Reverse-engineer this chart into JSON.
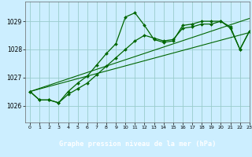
{
  "title": "Graphe pression niveau de la mer (hPa)",
  "bg_color": "#cceeff",
  "grid_color": "#99cccc",
  "line_color": "#006600",
  "xlim": [
    -0.5,
    23
  ],
  "ylim": [
    1025.4,
    1029.7
  ],
  "yticks": [
    1026,
    1027,
    1028,
    1029
  ],
  "xticks": [
    0,
    1,
    2,
    3,
    4,
    5,
    6,
    7,
    8,
    9,
    10,
    11,
    12,
    13,
    14,
    15,
    16,
    17,
    18,
    19,
    20,
    21,
    22,
    23
  ],
  "series_wavy": {
    "x": [
      0,
      1,
      2,
      3,
      4,
      5,
      6,
      7,
      8,
      9,
      10,
      11,
      12,
      13,
      14,
      15,
      16,
      17,
      18,
      19,
      20,
      21,
      22,
      23
    ],
    "y": [
      1026.5,
      1026.2,
      1026.2,
      1026.1,
      1026.5,
      1026.8,
      1027.05,
      1027.45,
      1027.85,
      1028.2,
      1029.15,
      1029.3,
      1028.85,
      1028.35,
      1028.25,
      1028.3,
      1028.85,
      1028.9,
      1029.0,
      1029.0,
      1029.0,
      1028.8,
      1028.0,
      1028.65
    ]
  },
  "series_mid": {
    "x": [
      0,
      1,
      2,
      3,
      4,
      5,
      6,
      7,
      8,
      9,
      10,
      11,
      12,
      13,
      14,
      15,
      16,
      17,
      18,
      19,
      20,
      21,
      22,
      23
    ],
    "y": [
      1026.5,
      1026.2,
      1026.2,
      1026.1,
      1026.4,
      1026.6,
      1026.8,
      1027.1,
      1027.4,
      1027.7,
      1028.0,
      1028.3,
      1028.5,
      1028.4,
      1028.3,
      1028.35,
      1028.75,
      1028.8,
      1028.9,
      1028.9,
      1029.0,
      1028.75,
      1028.0,
      1028.65
    ]
  },
  "series_trend1": {
    "x": [
      0,
      23
    ],
    "y": [
      1026.5,
      1028.6
    ]
  },
  "series_trend2": {
    "x": [
      0,
      23
    ],
    "y": [
      1026.5,
      1029.1
    ]
  },
  "xlabel_bg": "#2e6b2e",
  "xlabel_fg": "#ffffff"
}
